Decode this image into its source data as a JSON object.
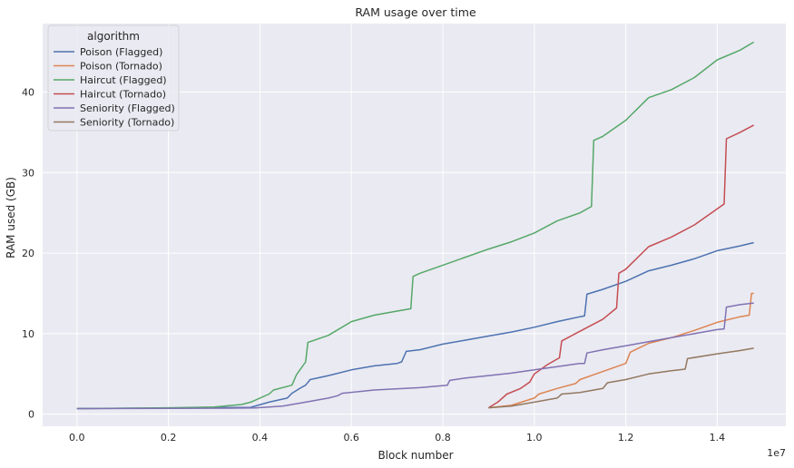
{
  "chart_data": {
    "type": "line",
    "title": "RAM usage over time",
    "xlabel": "Block number",
    "ylabel": "RAM used (GB)",
    "x_offset_label": "1e7",
    "xlim": [
      -0.075,
      1.55
    ],
    "ylim": [
      -1.5,
      48.5
    ],
    "x_ticks": [
      0.0,
      0.2,
      0.4,
      0.6,
      0.8,
      1.0,
      1.2,
      1.4
    ],
    "x_tick_labels": [
      "0.0",
      "0.2",
      "0.4",
      "0.6",
      "0.8",
      "1.0",
      "1.2",
      "1.4"
    ],
    "y_ticks": [
      0,
      10,
      20,
      30,
      40
    ],
    "y_tick_labels": [
      "0",
      "10",
      "20",
      "30",
      "40"
    ],
    "grid": true,
    "legend": {
      "title": "algorithm",
      "placement": "top-left"
    },
    "series": [
      {
        "name": "Poison (Flagged)",
        "color": "#4c72b0",
        "points": [
          [
            0,
            0.7
          ],
          [
            0.2,
            0.75
          ],
          [
            0.38,
            0.85
          ],
          [
            0.42,
            1.5
          ],
          [
            0.46,
            2.0
          ],
          [
            0.47,
            2.6
          ],
          [
            0.49,
            3.3
          ],
          [
            0.5,
            3.6
          ],
          [
            0.51,
            4.3
          ],
          [
            0.55,
            4.8
          ],
          [
            0.6,
            5.5
          ],
          [
            0.65,
            6.0
          ],
          [
            0.7,
            6.3
          ],
          [
            0.71,
            6.5
          ],
          [
            0.72,
            7.8
          ],
          [
            0.75,
            8.0
          ],
          [
            0.8,
            8.7
          ],
          [
            0.85,
            9.2
          ],
          [
            0.9,
            9.7
          ],
          [
            0.95,
            10.2
          ],
          [
            1.0,
            10.8
          ],
          [
            1.05,
            11.5
          ],
          [
            1.1,
            12.1
          ],
          [
            1.11,
            12.2
          ],
          [
            1.115,
            14.9
          ],
          [
            1.15,
            15.5
          ],
          [
            1.2,
            16.5
          ],
          [
            1.25,
            17.8
          ],
          [
            1.3,
            18.5
          ],
          [
            1.35,
            19.3
          ],
          [
            1.4,
            20.3
          ],
          [
            1.45,
            20.9
          ],
          [
            1.48,
            21.3
          ]
        ]
      },
      {
        "name": "Poison (Tornado)",
        "color": "#dd8452",
        "points": [
          [
            0.9,
            0.8
          ],
          [
            0.95,
            1.1
          ],
          [
            1.0,
            2.0
          ],
          [
            1.01,
            2.5
          ],
          [
            1.05,
            3.2
          ],
          [
            1.09,
            3.8
          ],
          [
            1.1,
            4.3
          ],
          [
            1.15,
            5.3
          ],
          [
            1.2,
            6.3
          ],
          [
            1.21,
            7.7
          ],
          [
            1.25,
            8.8
          ],
          [
            1.3,
            9.5
          ],
          [
            1.35,
            10.4
          ],
          [
            1.4,
            11.4
          ],
          [
            1.45,
            12.1
          ],
          [
            1.47,
            12.3
          ],
          [
            1.475,
            15.0
          ],
          [
            1.48,
            15.0
          ]
        ]
      },
      {
        "name": "Haircut (Flagged)",
        "color": "#55a868",
        "points": [
          [
            0,
            0.7
          ],
          [
            0.2,
            0.8
          ],
          [
            0.3,
            0.9
          ],
          [
            0.36,
            1.2
          ],
          [
            0.38,
            1.5
          ],
          [
            0.42,
            2.5
          ],
          [
            0.43,
            3.0
          ],
          [
            0.47,
            3.6
          ],
          [
            0.48,
            4.9
          ],
          [
            0.5,
            6.5
          ],
          [
            0.505,
            8.9
          ],
          [
            0.55,
            9.8
          ],
          [
            0.6,
            11.5
          ],
          [
            0.65,
            12.3
          ],
          [
            0.7,
            12.8
          ],
          [
            0.73,
            13.1
          ],
          [
            0.735,
            17.1
          ],
          [
            0.75,
            17.5
          ],
          [
            0.8,
            18.5
          ],
          [
            0.85,
            19.5
          ],
          [
            0.9,
            20.5
          ],
          [
            0.95,
            21.4
          ],
          [
            1.0,
            22.5
          ],
          [
            1.05,
            24.0
          ],
          [
            1.1,
            25.0
          ],
          [
            1.125,
            25.8
          ],
          [
            1.13,
            34.0
          ],
          [
            1.15,
            34.5
          ],
          [
            1.2,
            36.5
          ],
          [
            1.25,
            39.3
          ],
          [
            1.3,
            40.3
          ],
          [
            1.35,
            41.8
          ],
          [
            1.4,
            44.0
          ],
          [
            1.45,
            45.2
          ],
          [
            1.48,
            46.2
          ]
        ]
      },
      {
        "name": "Haircut (Tornado)",
        "color": "#c44e52",
        "points": [
          [
            0.9,
            0.8
          ],
          [
            0.92,
            1.5
          ],
          [
            0.94,
            2.5
          ],
          [
            0.97,
            3.2
          ],
          [
            0.99,
            4.0
          ],
          [
            1.0,
            5.0
          ],
          [
            1.03,
            6.2
          ],
          [
            1.055,
            7.0
          ],
          [
            1.06,
            9.1
          ],
          [
            1.1,
            10.3
          ],
          [
            1.15,
            11.8
          ],
          [
            1.18,
            13.2
          ],
          [
            1.185,
            17.5
          ],
          [
            1.2,
            18.0
          ],
          [
            1.25,
            20.8
          ],
          [
            1.3,
            22.0
          ],
          [
            1.35,
            23.5
          ],
          [
            1.4,
            25.5
          ],
          [
            1.415,
            26.1
          ],
          [
            1.42,
            34.2
          ],
          [
            1.45,
            35.0
          ],
          [
            1.48,
            35.9
          ]
        ]
      },
      {
        "name": "Seniority (Flagged)",
        "color": "#8172b3",
        "points": [
          [
            0,
            0.7
          ],
          [
            0.2,
            0.72
          ],
          [
            0.39,
            0.78
          ],
          [
            0.45,
            1.0
          ],
          [
            0.5,
            1.5
          ],
          [
            0.55,
            2.0
          ],
          [
            0.57,
            2.3
          ],
          [
            0.58,
            2.6
          ],
          [
            0.65,
            3.0
          ],
          [
            0.75,
            3.3
          ],
          [
            0.81,
            3.6
          ],
          [
            0.815,
            4.2
          ],
          [
            0.85,
            4.5
          ],
          [
            0.9,
            4.8
          ],
          [
            0.95,
            5.1
          ],
          [
            1.0,
            5.5
          ],
          [
            1.05,
            5.9
          ],
          [
            1.1,
            6.3
          ],
          [
            1.11,
            6.3
          ],
          [
            1.115,
            7.6
          ],
          [
            1.15,
            8.0
          ],
          [
            1.2,
            8.5
          ],
          [
            1.25,
            9.0
          ],
          [
            1.3,
            9.5
          ],
          [
            1.35,
            10.0
          ],
          [
            1.4,
            10.5
          ],
          [
            1.415,
            10.6
          ],
          [
            1.42,
            13.3
          ],
          [
            1.45,
            13.6
          ],
          [
            1.48,
            13.8
          ]
        ]
      },
      {
        "name": "Seniority (Tornado)",
        "color": "#937860",
        "points": [
          [
            0.9,
            0.8
          ],
          [
            0.95,
            1.0
          ],
          [
            1.0,
            1.5
          ],
          [
            1.05,
            2.0
          ],
          [
            1.06,
            2.5
          ],
          [
            1.1,
            2.7
          ],
          [
            1.15,
            3.2
          ],
          [
            1.16,
            3.9
          ],
          [
            1.2,
            4.3
          ],
          [
            1.25,
            5.0
          ],
          [
            1.3,
            5.4
          ],
          [
            1.33,
            5.6
          ],
          [
            1.335,
            6.9
          ],
          [
            1.4,
            7.5
          ],
          [
            1.45,
            7.9
          ],
          [
            1.48,
            8.2
          ]
        ]
      }
    ]
  }
}
